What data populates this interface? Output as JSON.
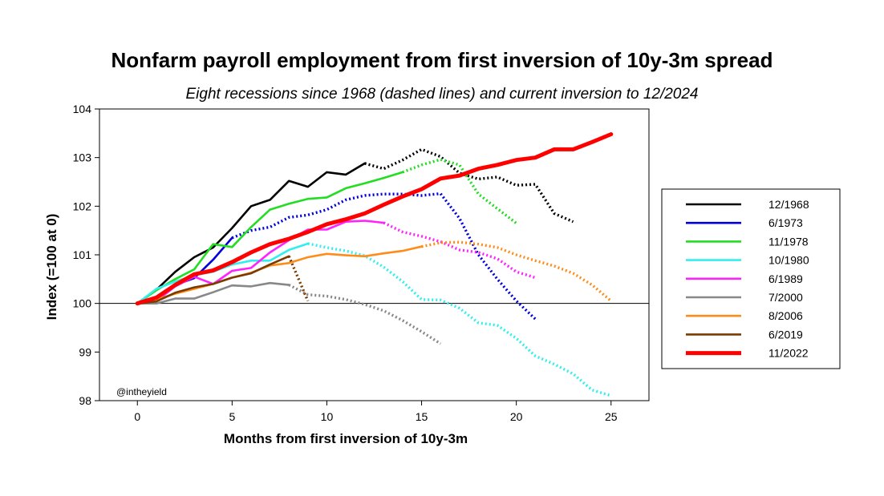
{
  "chart_data": {
    "type": "line",
    "title": "Nonfarm payroll employment from first inversion of 10y-3m spread",
    "subtitle": "Eight recessions since 1968 (dashed lines) and current inversion to 12/2024",
    "xlabel": "Months from first inversion of 10y-3m",
    "ylabel": "Index (=100 at 0)",
    "xlim": [
      -2,
      27
    ],
    "ylim": [
      98,
      104
    ],
    "xticks": [
      0,
      5,
      10,
      15,
      20,
      25
    ],
    "yticks": [
      98,
      99,
      100,
      101,
      102,
      103,
      104
    ],
    "reference_line": 100,
    "annotation": "@intheyield",
    "legend_position": "right",
    "series": [
      {
        "name": "12/1968",
        "color": "#000000",
        "solid_until": 12,
        "x": [
          0,
          1,
          2,
          3,
          4,
          5,
          6,
          7,
          8,
          9,
          10,
          11,
          12,
          13,
          14,
          15,
          16,
          17,
          18,
          19,
          20,
          21,
          22,
          23
        ],
        "y": [
          100,
          100.28,
          100.65,
          100.95,
          101.15,
          101.55,
          102.0,
          102.13,
          102.52,
          102.4,
          102.7,
          102.65,
          102.88,
          102.77,
          102.95,
          103.17,
          103.02,
          102.68,
          102.56,
          102.6,
          102.43,
          102.45,
          101.85,
          101.68
        ]
      },
      {
        "name": "6/1973",
        "color": "#0000dd",
        "solid_until": 5,
        "x": [
          0,
          1,
          2,
          3,
          4,
          5,
          6,
          7,
          8,
          9,
          10,
          11,
          12,
          13,
          14,
          15,
          16,
          17,
          18,
          19,
          20,
          21
        ],
        "y": [
          100,
          100.05,
          100.38,
          100.52,
          100.9,
          101.35,
          101.5,
          101.57,
          101.77,
          101.82,
          101.93,
          102.13,
          102.22,
          102.25,
          102.25,
          102.22,
          102.26,
          101.75,
          101.0,
          100.5,
          100.05,
          99.68
        ]
      },
      {
        "name": "11/1978",
        "color": "#22dd22",
        "solid_until": 14,
        "x": [
          0,
          1,
          2,
          3,
          4,
          5,
          6,
          7,
          8,
          9,
          10,
          11,
          12,
          13,
          14,
          15,
          16,
          17,
          18,
          19,
          20
        ],
        "y": [
          100,
          100.27,
          100.5,
          100.7,
          101.22,
          101.16,
          101.57,
          101.93,
          102.05,
          102.15,
          102.18,
          102.37,
          102.47,
          102.58,
          102.7,
          102.85,
          102.96,
          102.85,
          102.25,
          101.95,
          101.65
        ]
      },
      {
        "name": "10/1980",
        "color": "#33eeee",
        "solid_until": 9,
        "x": [
          0,
          1,
          2,
          3,
          4,
          5,
          6,
          7,
          8,
          9,
          10,
          11,
          12,
          13,
          14,
          15,
          16,
          17,
          18,
          19,
          20,
          21,
          22,
          23,
          24,
          25
        ],
        "y": [
          100,
          100.3,
          100.45,
          100.58,
          100.65,
          100.8,
          100.88,
          100.88,
          101.1,
          101.23,
          101.15,
          101.08,
          100.98,
          100.75,
          100.45,
          100.08,
          100.07,
          99.9,
          99.6,
          99.55,
          99.28,
          98.92,
          98.75,
          98.55,
          98.22,
          98.1
        ]
      },
      {
        "name": "6/1989",
        "color": "#ff22ff",
        "solid_until": 13,
        "x": [
          0,
          1,
          2,
          3,
          4,
          5,
          6,
          7,
          8,
          9,
          10,
          11,
          12,
          13,
          14,
          15,
          16,
          17,
          18,
          19,
          20,
          21
        ],
        "y": [
          100,
          100.05,
          100.35,
          100.55,
          100.4,
          100.67,
          100.73,
          101.05,
          101.3,
          101.52,
          101.52,
          101.68,
          101.7,
          101.66,
          101.47,
          101.38,
          101.27,
          101.1,
          101.05,
          100.92,
          100.65,
          100.53
        ]
      },
      {
        "name": "7/2000",
        "color": "#888888",
        "solid_until": 8,
        "x": [
          0,
          1,
          2,
          3,
          4,
          5,
          6,
          7,
          8,
          9,
          10,
          11,
          12,
          13,
          14,
          15,
          16
        ],
        "y": [
          100,
          100.0,
          100.1,
          100.1,
          100.23,
          100.37,
          100.35,
          100.42,
          100.38,
          100.18,
          100.15,
          100.08,
          99.98,
          99.85,
          99.65,
          99.42,
          99.17
        ]
      },
      {
        "name": "8/2006",
        "color": "#ff8c1a",
        "solid_until": 15,
        "x": [
          0,
          1,
          2,
          3,
          4,
          5,
          6,
          7,
          8,
          9,
          10,
          11,
          12,
          13,
          14,
          15,
          16,
          17,
          18,
          19,
          20,
          21,
          22,
          23,
          24,
          25
        ],
        "y": [
          100,
          100.08,
          100.2,
          100.3,
          100.4,
          100.53,
          100.63,
          100.78,
          100.83,
          100.95,
          101.02,
          100.99,
          100.97,
          101.03,
          101.08,
          101.17,
          101.25,
          101.26,
          101.22,
          101.15,
          101.0,
          100.88,
          100.77,
          100.62,
          100.38,
          100.05
        ]
      },
      {
        "name": "6/2019",
        "color": "#7a3b00",
        "solid_until": 8,
        "x": [
          0,
          1,
          2,
          3,
          4,
          5,
          6,
          7,
          8,
          9
        ],
        "y": [
          100,
          100.04,
          100.22,
          100.33,
          100.4,
          100.53,
          100.62,
          100.8,
          100.97,
          100.05
        ]
      },
      {
        "name": "11/2022",
        "color": "#ff0000",
        "solid_until": 25,
        "emphasis": true,
        "x": [
          0,
          1,
          2,
          3,
          4,
          5,
          6,
          7,
          8,
          9,
          10,
          11,
          12,
          13,
          14,
          15,
          16,
          17,
          18,
          19,
          20,
          21,
          22,
          23,
          24,
          25
        ],
        "y": [
          100,
          100.12,
          100.38,
          100.6,
          100.68,
          100.85,
          101.05,
          101.22,
          101.33,
          101.47,
          101.63,
          101.73,
          101.85,
          102.03,
          102.2,
          102.35,
          102.57,
          102.63,
          102.77,
          102.85,
          102.95,
          103.0,
          103.17,
          103.17,
          103.32,
          103.48
        ]
      }
    ]
  }
}
